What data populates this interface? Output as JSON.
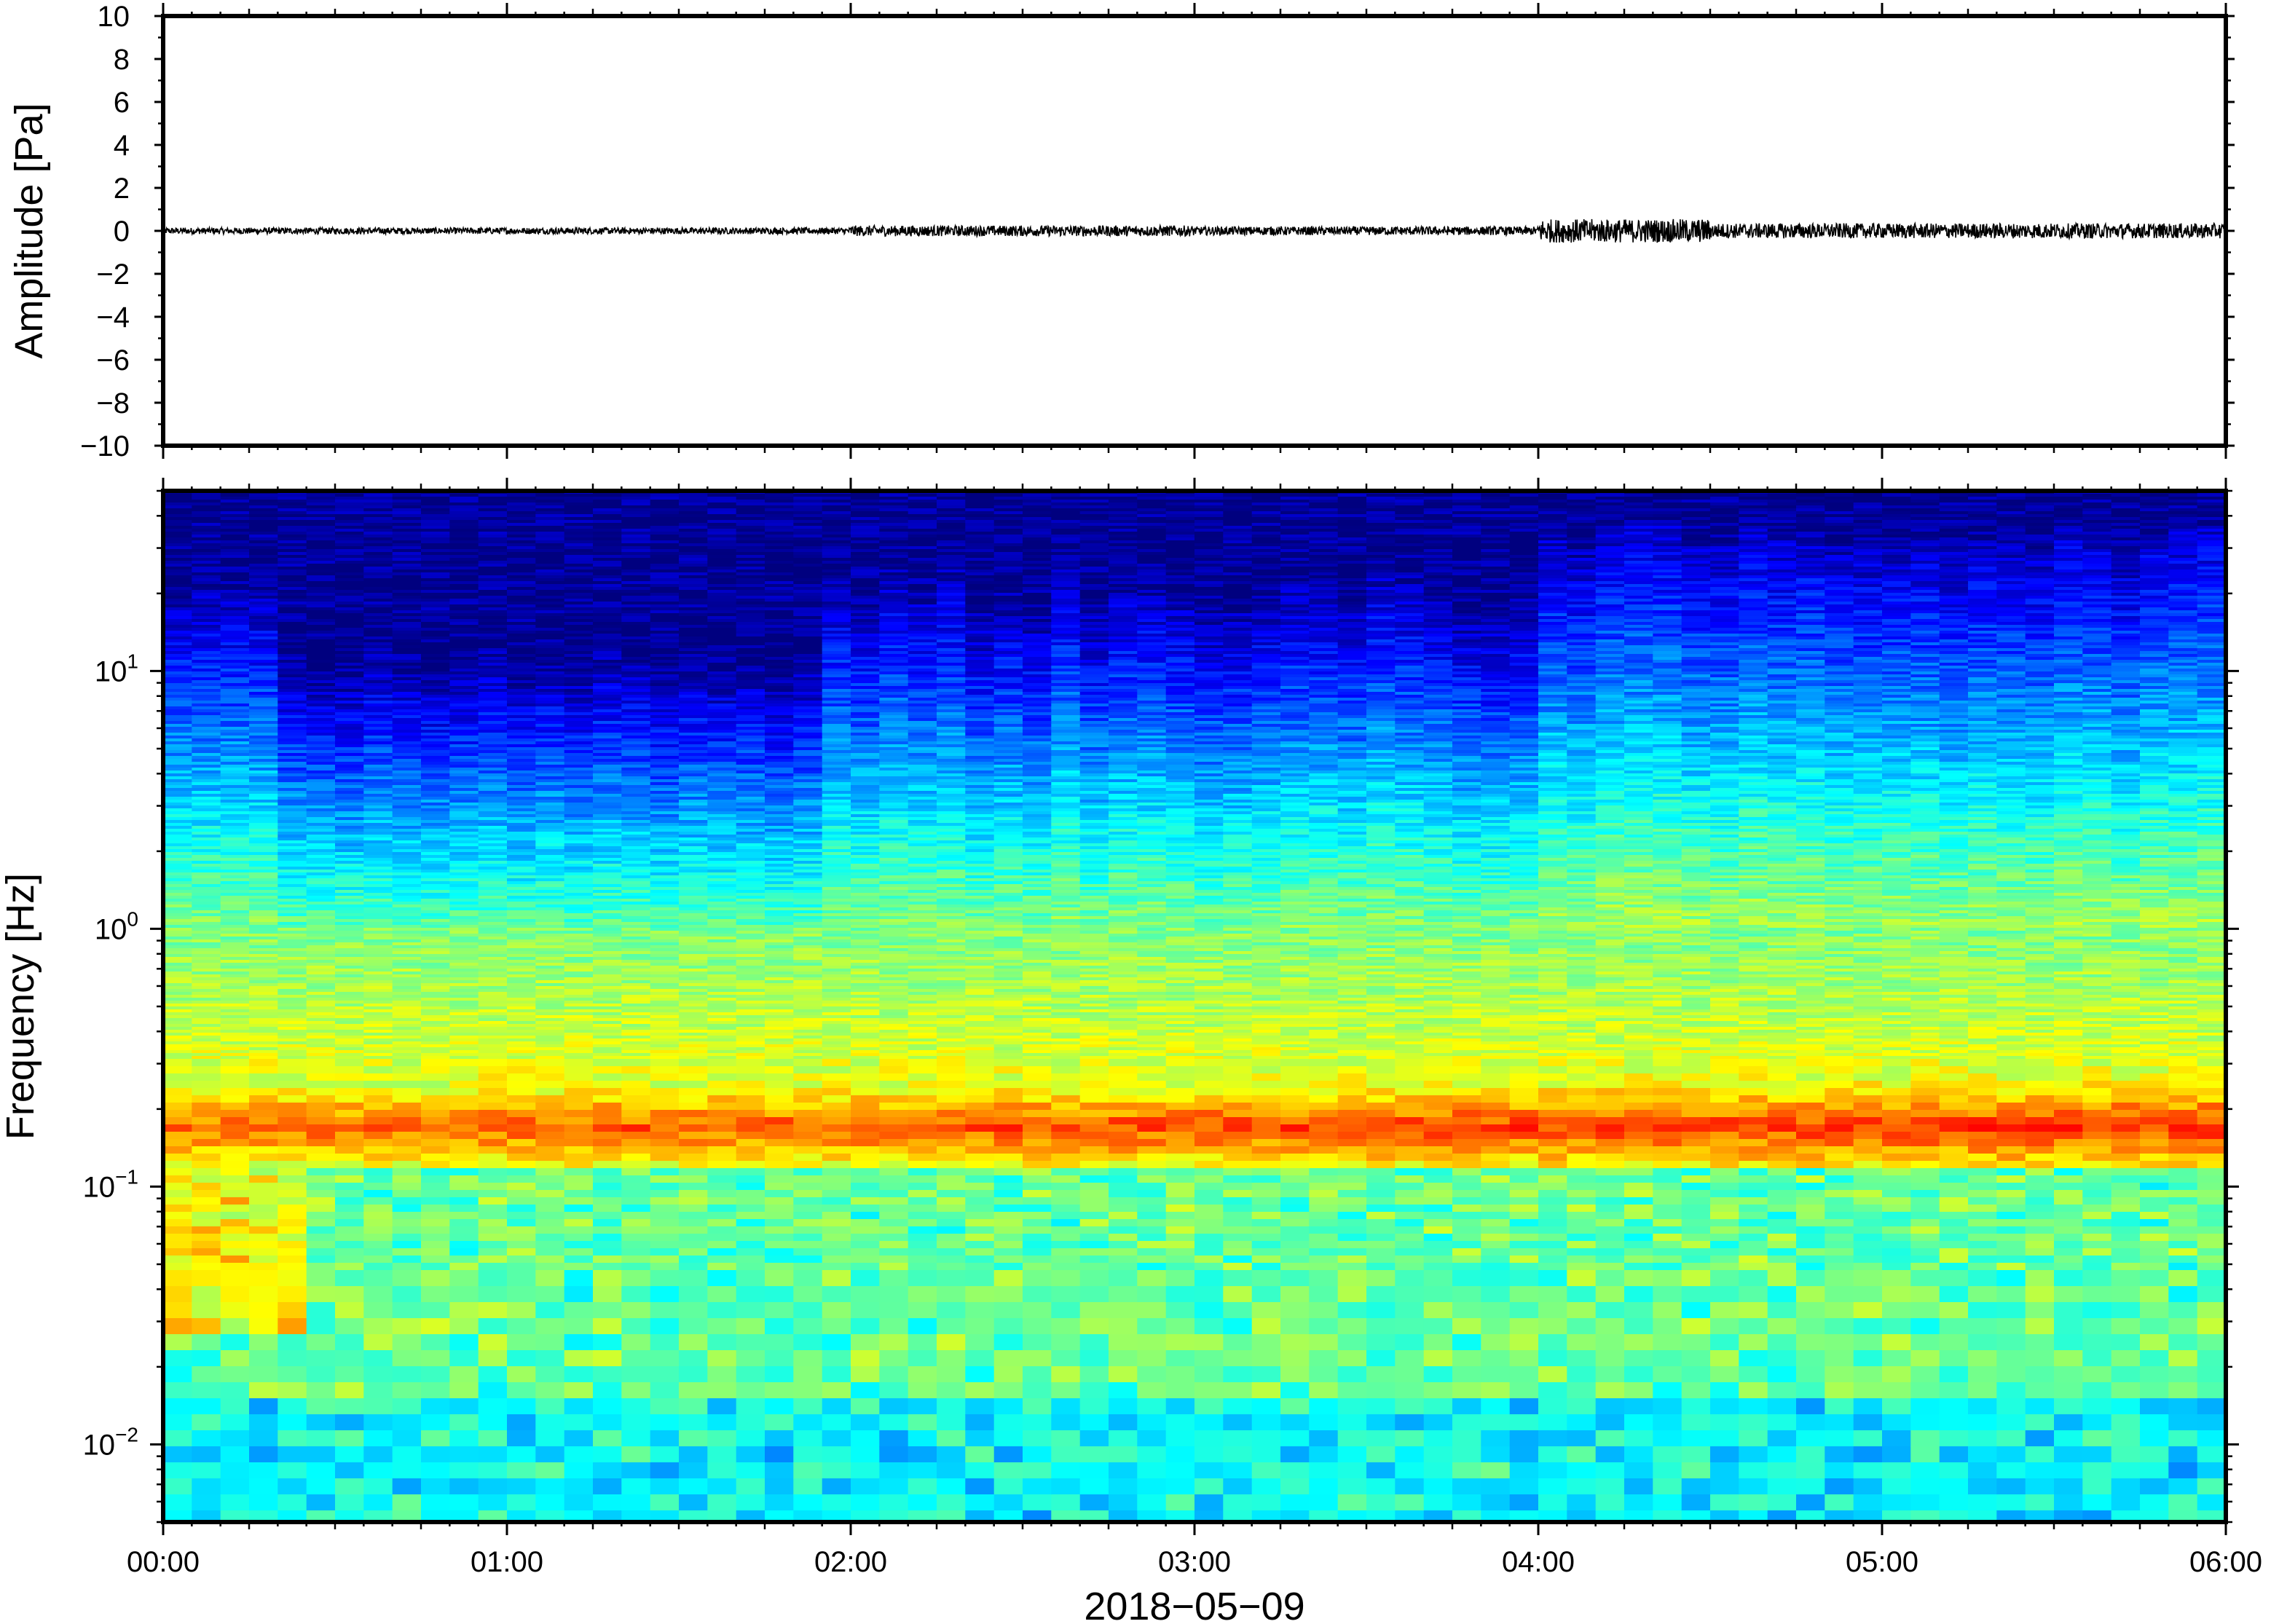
{
  "chart_data": [
    {
      "type": "line",
      "panel": "waveform",
      "ylabel": "Amplitude [Pa]",
      "xlabel": "",
      "ylim": [
        -10,
        10
      ],
      "yticks": [
        10,
        8,
        6,
        4,
        2,
        0,
        -2,
        -4,
        -6,
        -8,
        -10
      ],
      "ytick_labels": [
        "10",
        "8",
        "6",
        "4",
        "2",
        "0",
        "−2",
        "−4",
        "−6",
        "−8",
        "−10"
      ],
      "xlim_hours": [
        0,
        6
      ],
      "line_color": "#000000",
      "envelope_segments": [
        {
          "start_hour": 0.0,
          "end_hour": 2.0,
          "amplitude": 0.15
        },
        {
          "start_hour": 2.0,
          "end_hour": 3.0,
          "amplitude": 0.25
        },
        {
          "start_hour": 3.0,
          "end_hour": 4.0,
          "amplitude": 0.2
        },
        {
          "start_hour": 4.0,
          "end_hour": 4.5,
          "amplitude": 0.55
        },
        {
          "start_hour": 4.5,
          "end_hour": 6.0,
          "amplitude": 0.35
        }
      ]
    },
    {
      "type": "heatmap",
      "panel": "spectrogram",
      "ylabel": "Frequency [Hz]",
      "xlabel": "2018−05−09",
      "y_scale": "log",
      "ylim_hz": [
        0.005,
        50
      ],
      "yticks_hz": [
        0.01,
        0.1,
        1,
        10
      ],
      "ytick_labels": [
        {
          "base": "10",
          "exp": "−2"
        },
        {
          "base": "10",
          "exp": "−1"
        },
        {
          "base": "10",
          "exp": "0"
        },
        {
          "base": "10",
          "exp": "1"
        }
      ],
      "xlim_hours": [
        0,
        6
      ],
      "xticks_hours": [
        0,
        1,
        2,
        3,
        4,
        5,
        6
      ],
      "xtick_labels": [
        "00:00",
        "01:00",
        "02:00",
        "03:00",
        "04:00",
        "05:00",
        "06:00"
      ],
      "colormap": [
        "#00007f",
        "#0000ff",
        "#007fff",
        "#00ffff",
        "#7fff7f",
        "#ffff00",
        "#ff7f00",
        "#ff0000",
        "#7f0000"
      ],
      "microseism_band_hz": [
        0.12,
        0.25
      ],
      "microseism_peak_hz": 0.17
    }
  ]
}
